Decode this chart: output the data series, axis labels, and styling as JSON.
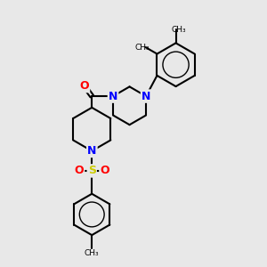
{
  "background_color": "#e8e8e8",
  "bond_color": "#000000",
  "N_color": "#0000ff",
  "O_color": "#ff0000",
  "S_color": "#cccc00",
  "lw": 1.5,
  "fs": 9,
  "xlim": [
    0,
    10
  ],
  "ylim": [
    0,
    10
  ]
}
